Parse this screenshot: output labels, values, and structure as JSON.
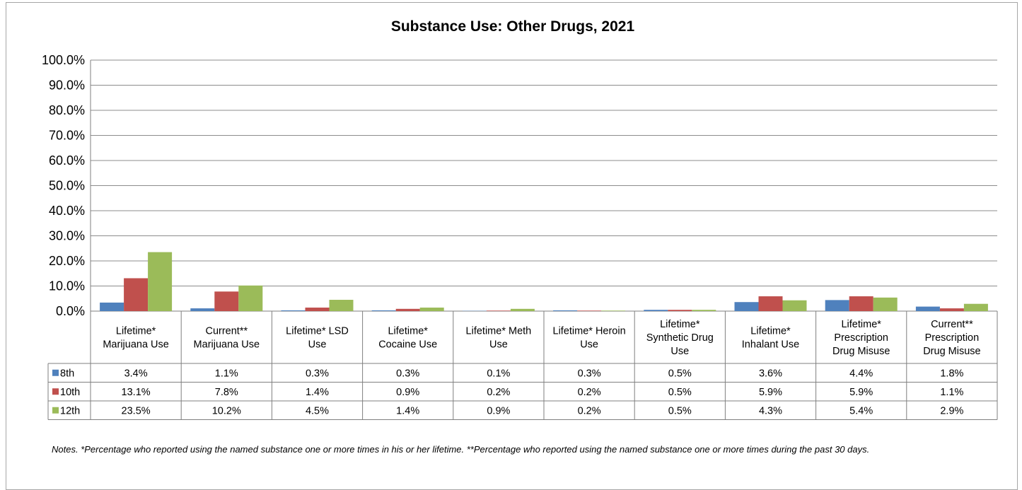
{
  "chart_data": {
    "type": "bar",
    "title": "Substance Use: Other Drugs, 2021",
    "xlabel": "",
    "ylabel": "",
    "ylim": [
      0,
      100
    ],
    "grid": true,
    "legend": "data table rows",
    "y_ticks": [
      "0.0%",
      "10.0%",
      "20.0%",
      "30.0%",
      "40.0%",
      "50.0%",
      "60.0%",
      "70.0%",
      "80.0%",
      "90.0%",
      "100.0%"
    ],
    "categories": [
      [
        "Lifetime*",
        "Marijuana Use"
      ],
      [
        "Current**",
        "Marijuana Use"
      ],
      [
        "Lifetime* LSD",
        "Use"
      ],
      [
        "Lifetime*",
        "Cocaine Use"
      ],
      [
        "Lifetime* Meth",
        "Use"
      ],
      [
        "Lifetime* Heroin",
        "Use"
      ],
      [
        "Lifetime*",
        "Synthetic Drug",
        "Use"
      ],
      [
        "Lifetime*",
        "Inhalant Use"
      ],
      [
        "Lifetime*",
        "Prescription",
        "Drug Misuse"
      ],
      [
        "Current**",
        "Prescription",
        "Drug Misuse"
      ]
    ],
    "series": [
      {
        "name": "8th",
        "color": "#4f81bd",
        "values": [
          3.4,
          1.1,
          0.3,
          0.3,
          0.1,
          0.3,
          0.5,
          3.6,
          4.4,
          1.8
        ],
        "labels": [
          "3.4%",
          "1.1%",
          "0.3%",
          "0.3%",
          "0.1%",
          "0.3%",
          "0.5%",
          "3.6%",
          "4.4%",
          "1.8%"
        ]
      },
      {
        "name": "10th",
        "color": "#c0504d",
        "values": [
          13.1,
          7.8,
          1.4,
          0.9,
          0.2,
          0.2,
          0.5,
          5.9,
          5.9,
          1.1
        ],
        "labels": [
          "13.1%",
          "7.8%",
          "1.4%",
          "0.9%",
          "0.2%",
          "0.2%",
          "0.5%",
          "5.9%",
          "5.9%",
          "1.1%"
        ]
      },
      {
        "name": "12th",
        "color": "#9bbb59",
        "values": [
          23.5,
          10.2,
          4.5,
          1.4,
          0.9,
          0.2,
          0.5,
          4.3,
          5.4,
          2.9
        ],
        "labels": [
          "23.5%",
          "10.2%",
          "4.5%",
          "1.4%",
          "0.9%",
          "0.2%",
          "0.5%",
          "4.3%",
          "5.4%",
          "2.9%"
        ]
      }
    ]
  },
  "notes": "Notes. *Percentage who reported using the named substance one or more times in his or her lifetime. **Percentage who reported using the named substance one or more times during the past 30 days."
}
